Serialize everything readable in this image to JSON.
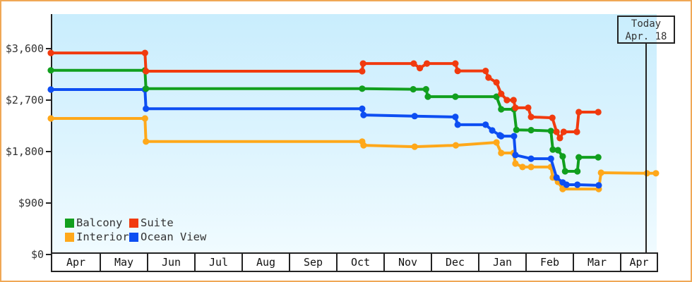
{
  "window": {
    "frame_border_color": "#f0a855",
    "plot_bg_top": "#c9edfd",
    "plot_bg_bottom": "#f0fbff",
    "axis_color": "#222222"
  },
  "annotation": {
    "line1": "Today",
    "line2": "Apr. 18",
    "line_month_pos": 12.58
  },
  "legend": [
    {
      "label": "Balcony",
      "color": "#119f1e"
    },
    {
      "label": "Suite",
      "color": "#f13a0e"
    },
    {
      "label": "Interior",
      "color": "#ffa81a"
    },
    {
      "label": "Ocean View",
      "color": "#0d4ef2"
    }
  ],
  "chart_data": {
    "type": "line",
    "step_style": true,
    "title": "",
    "xlabel": "",
    "ylabel": "",
    "x_months": [
      "Apr",
      "May",
      "Jun",
      "Jul",
      "Aug",
      "Sep",
      "Oct",
      "Nov",
      "Dec",
      "Jan",
      "Feb",
      "Mar",
      "Apr"
    ],
    "y_ticks": [
      {
        "value": 0,
        "label": "$0"
      },
      {
        "value": 900,
        "label": "$900"
      },
      {
        "value": 1800,
        "label": "$1,800"
      },
      {
        "value": 2700,
        "label": "$2,700"
      },
      {
        "value": 3600,
        "label": "$3,600"
      }
    ],
    "ylim": [
      0,
      4200
    ],
    "legend_position": "bottom-left",
    "grid": false,
    "series": [
      {
        "name": "Interior",
        "color": "#ffa81a",
        "points": [
          [
            0,
            2380
          ],
          [
            1.99,
            2380
          ],
          [
            2.01,
            1975
          ],
          [
            6.58,
            1975
          ],
          [
            6.61,
            1910
          ],
          [
            7.69,
            1885
          ],
          [
            8.56,
            1910
          ],
          [
            9.42,
            1960
          ],
          [
            9.52,
            1775
          ],
          [
            9.78,
            1775
          ],
          [
            9.82,
            1590
          ],
          [
            9.97,
            1530
          ],
          [
            10.15,
            1530
          ],
          [
            10.57,
            1530
          ],
          [
            10.61,
            1345
          ],
          [
            10.72,
            1270
          ],
          [
            10.82,
            1145
          ],
          [
            11.58,
            1145
          ],
          [
            11.63,
            1430
          ],
          [
            12.6,
            1420
          ],
          [
            12.79,
            1420
          ]
        ]
      },
      {
        "name": "Ocean View",
        "color": "#0d4ef2",
        "points": [
          [
            0,
            2885
          ],
          [
            1.99,
            2885
          ],
          [
            2.01,
            2550
          ],
          [
            6.58,
            2550
          ],
          [
            6.61,
            2440
          ],
          [
            7.69,
            2420
          ],
          [
            8.55,
            2405
          ],
          [
            8.6,
            2270
          ],
          [
            9.19,
            2270
          ],
          [
            9.33,
            2170
          ],
          [
            9.49,
            2085
          ],
          [
            9.52,
            2070
          ],
          [
            9.79,
            2070
          ],
          [
            9.82,
            1740
          ],
          [
            10.15,
            1675
          ],
          [
            10.57,
            1675
          ],
          [
            10.69,
            1345
          ],
          [
            10.82,
            1260
          ],
          [
            10.9,
            1220
          ],
          [
            11.13,
            1220
          ],
          [
            11.58,
            1210
          ]
        ]
      },
      {
        "name": "Balcony",
        "color": "#119f1e",
        "points": [
          [
            0,
            3220
          ],
          [
            1.99,
            3220
          ],
          [
            2.01,
            2900
          ],
          [
            6.58,
            2900
          ],
          [
            7.66,
            2890
          ],
          [
            7.93,
            2890
          ],
          [
            7.97,
            2760
          ],
          [
            8.55,
            2760
          ],
          [
            9.42,
            2760
          ],
          [
            9.52,
            2540
          ],
          [
            9.79,
            2540
          ],
          [
            9.84,
            2180
          ],
          [
            10.15,
            2175
          ],
          [
            10.57,
            2160
          ],
          [
            10.61,
            1835
          ],
          [
            10.72,
            1825
          ],
          [
            10.82,
            1715
          ],
          [
            10.87,
            1455
          ],
          [
            11.13,
            1455
          ],
          [
            11.16,
            1700
          ],
          [
            11.57,
            1700
          ]
        ]
      },
      {
        "name": "Suite",
        "color": "#f13a0e",
        "points": [
          [
            0,
            3525
          ],
          [
            1.99,
            3525
          ],
          [
            2.01,
            3205
          ],
          [
            6.58,
            3205
          ],
          [
            6.6,
            3340
          ],
          [
            7.67,
            3340
          ],
          [
            7.8,
            3260
          ],
          [
            7.95,
            3340
          ],
          [
            8.55,
            3340
          ],
          [
            8.6,
            3210
          ],
          [
            9.19,
            3210
          ],
          [
            9.25,
            3095
          ],
          [
            9.42,
            3010
          ],
          [
            9.52,
            2810
          ],
          [
            9.64,
            2700
          ],
          [
            9.78,
            2700
          ],
          [
            9.82,
            2565
          ],
          [
            10.09,
            2565
          ],
          [
            10.15,
            2405
          ],
          [
            10.6,
            2390
          ],
          [
            10.69,
            2145
          ],
          [
            10.76,
            2035
          ],
          [
            10.84,
            2145
          ],
          [
            11.12,
            2145
          ],
          [
            11.16,
            2490
          ],
          [
            11.57,
            2490
          ]
        ]
      }
    ]
  }
}
